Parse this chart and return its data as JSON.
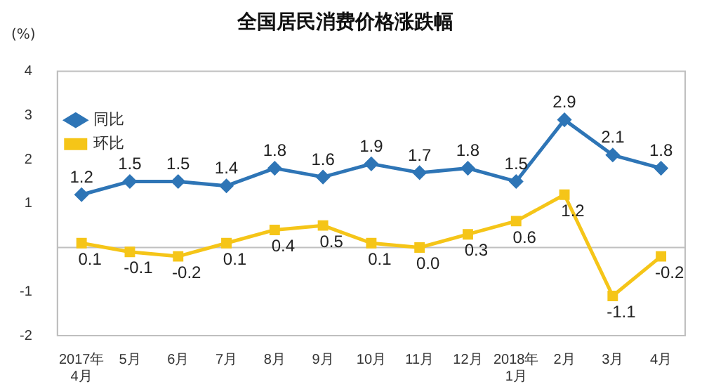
{
  "chart_data": {
    "type": "line",
    "title": "全国居民消费价格涨跌幅",
    "ylabel": "(%)",
    "categories": [
      "2017年\n4月",
      "5月",
      "6月",
      "7月",
      "8月",
      "9月",
      "10月",
      "11月",
      "12月",
      "2018年\n1月",
      "2月",
      "3月",
      "4月"
    ],
    "series": [
      {
        "name": "同比",
        "color": "#2e75b6",
        "marker": "diamond",
        "values": [
          1.2,
          1.5,
          1.5,
          1.4,
          1.8,
          1.6,
          1.9,
          1.7,
          1.8,
          1.5,
          2.9,
          2.1,
          1.8
        ],
        "value_labels": [
          "1.2",
          "1.5",
          "1.5",
          "1.4",
          "1.8",
          "1.6",
          "1.9",
          "1.7",
          "1.8",
          "1.5",
          "2.9",
          "2.1",
          "1.8"
        ]
      },
      {
        "name": "环比",
        "color": "#f5c518",
        "marker": "square",
        "values": [
          0.1,
          -0.1,
          -0.2,
          0.1,
          0.4,
          0.5,
          0.1,
          0.0,
          0.3,
          0.6,
          1.2,
          -1.1,
          -0.2
        ],
        "value_labels": [
          "0.1",
          "-0.1",
          "-0.2",
          "0.1",
          "0.4",
          "0.5",
          "0.1",
          "0.0",
          "0.3",
          "0.6",
          "1.2",
          "-1.1",
          "-0.2"
        ]
      }
    ],
    "ylim": [
      -2,
      4
    ],
    "yticks": [
      -2,
      -1,
      1,
      2,
      3,
      4
    ],
    "ref_lines": [
      {
        "axis": "y",
        "value": 0,
        "color": "#c0c0c0"
      }
    ],
    "grid": false,
    "legend": "top",
    "line_style": "solid"
  }
}
